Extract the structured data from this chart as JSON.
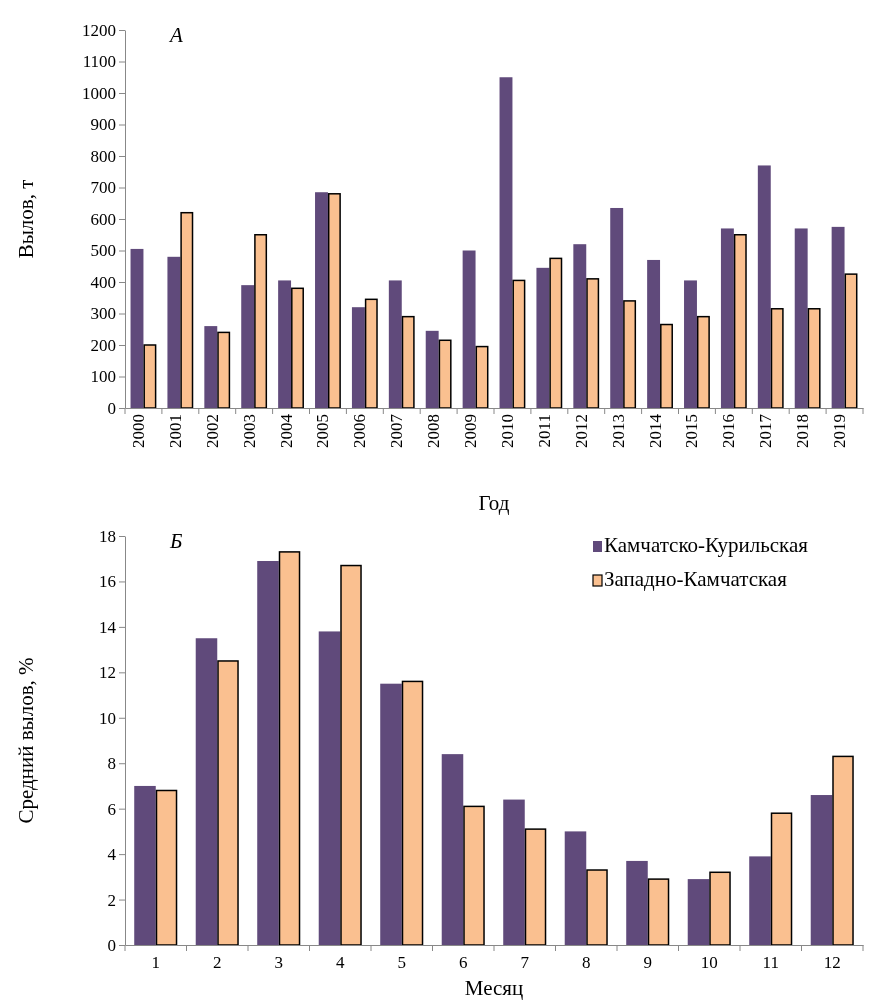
{
  "chart_data": [
    {
      "type": "bar",
      "annotations": [
        "A"
      ],
      "xlabel": "Год",
      "ylabel": "Вылов, т",
      "categories": [
        "2000",
        "2001",
        "2002",
        "2003",
        "2004",
        "2005",
        "2006",
        "2007",
        "2008",
        "2009",
        "2010",
        "2011",
        "2012",
        "2013",
        "2014",
        "2015",
        "2016",
        "2017",
        "2018",
        "2019"
      ],
      "ylim": [
        0,
        1200
      ],
      "yticks": [
        0,
        100,
        200,
        300,
        400,
        500,
        600,
        700,
        800,
        900,
        1000,
        1100,
        1200
      ],
      "grid": false,
      "legend": false,
      "series": [
        {
          "color": "#604a7b",
          "values": [
            505,
            480,
            260,
            390,
            405,
            685,
            320,
            405,
            245,
            500,
            1050,
            445,
            520,
            635,
            470,
            405,
            570,
            770,
            570,
            575
          ]
        },
        {
          "color": "#fac090",
          "values": [
            200,
            620,
            240,
            550,
            380,
            680,
            345,
            290,
            215,
            195,
            405,
            475,
            410,
            340,
            265,
            290,
            550,
            315,
            315,
            425
          ]
        }
      ]
    },
    {
      "type": "bar",
      "annotations": [
        "Б"
      ],
      "xlabel": "Месяц",
      "ylabel": "Средний вылов, %",
      "categories": [
        "1",
        "2",
        "3",
        "4",
        "5",
        "6",
        "7",
        "8",
        "9",
        "10",
        "11",
        "12"
      ],
      "ylim": [
        0,
        18
      ],
      "yticks": [
        0,
        2,
        4,
        6,
        8,
        10,
        12,
        14,
        16,
        18
      ],
      "grid": false,
      "legend": "top right",
      "series": [
        {
          "name": "Камчатско-Курильская",
          "color": "#604a7b",
          "values": [
            7.0,
            13.5,
            16.9,
            13.8,
            11.5,
            8.4,
            6.4,
            5.0,
            3.7,
            2.9,
            3.9,
            6.6
          ]
        },
        {
          "name": "Западно-Камчатская",
          "color": "#fac090",
          "values": [
            6.8,
            12.5,
            17.3,
            16.7,
            11.6,
            6.1,
            5.1,
            3.3,
            2.9,
            3.2,
            5.8,
            8.3
          ]
        }
      ]
    }
  ]
}
